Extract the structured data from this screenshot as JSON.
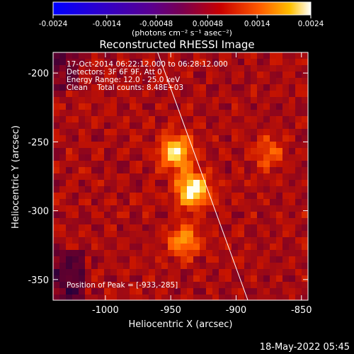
{
  "chart_data": {
    "type": "heatmap",
    "title": "Reconstructed RHESSI Image",
    "xlabel": "Heliocentric X (arcsec)",
    "ylabel": "Heliocentric Y (arcsec)",
    "xlim": [
      -1040,
      -845
    ],
    "ylim": [
      -365,
      -185
    ],
    "xticks": [
      -1000,
      -950,
      -900,
      -850
    ],
    "yticks": [
      -200,
      -250,
      -300,
      -350
    ],
    "colorbar": {
      "range": [
        -0.0024,
        0.0024
      ],
      "tick_labels": [
        "-0.0024",
        "-0.0014",
        "-0.00048",
        "0.00048",
        "0.0014",
        "0.0024"
      ],
      "tick_values": [
        -0.0024,
        -0.0014,
        -0.00048,
        0.00048,
        0.0014,
        0.0024
      ],
      "units_label": "(photons cm⁻² s⁻¹ asec⁻²)"
    },
    "sources": [
      {
        "x": -933,
        "y": -285,
        "relative_intensity": 1.0
      },
      {
        "x": -946,
        "y": -258,
        "relative_intensity": 0.82
      },
      {
        "x": -940,
        "y": -322,
        "relative_intensity": 0.55
      },
      {
        "x": -875,
        "y": -258,
        "relative_intensity": 0.35
      }
    ],
    "limb_line": [
      [
        -960,
        -185
      ],
      [
        -891,
        -365
      ]
    ]
  },
  "annotations": {
    "time": "17-Oct-2014 06:22:12.000 to 06:28:12.000",
    "detectors": "Detectors: 3F 6F 9F, Att 0",
    "energy": "Energy Range: 12.0 - 25.0 keV",
    "clean": "Clean    Total counts: 8.48E+03",
    "peak": "Position of Peak = [-933,-285]"
  },
  "footer": "18-May-2022 05:45"
}
